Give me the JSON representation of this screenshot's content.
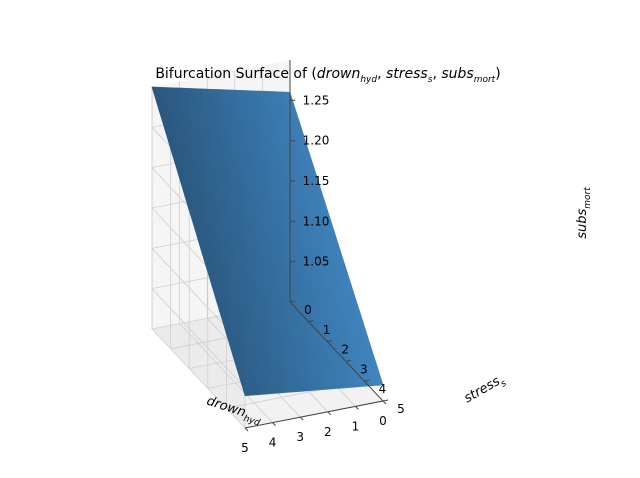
{
  "chart_data": {
    "type": "surface",
    "title": {
      "prefix": "Bifurcation Surface of (",
      "terms": [
        {
          "base": "drown",
          "sub": "hyd"
        },
        {
          "base": "stress",
          "sub": "s"
        },
        {
          "base": "subs",
          "sub": "mort"
        }
      ],
      "suffix": ")"
    },
    "x_axis": {
      "base": "drown",
      "sub": "hyd",
      "ticks": [
        "0",
        "1",
        "2",
        "3",
        "4",
        "5"
      ],
      "range": [
        0,
        5
      ]
    },
    "y_axis": {
      "base": "stress",
      "sub": "s",
      "ticks": [
        "0",
        "1",
        "2",
        "3",
        "4",
        "5"
      ],
      "range": [
        0,
        5
      ]
    },
    "z_axis": {
      "base": "subs",
      "sub": "mort",
      "ticks": [
        "1.05",
        "1.10",
        "1.15",
        "1.20",
        "1.25"
      ],
      "range": [
        1.0,
        1.3
      ]
    },
    "corner_values": {
      "drown0_stress0": 1.26,
      "drown5_stress0": 1.3,
      "drown0_stress5": 1.02,
      "drown5_stress5": 1.04
    },
    "grid": true,
    "surface_color": "#3a78ad"
  }
}
